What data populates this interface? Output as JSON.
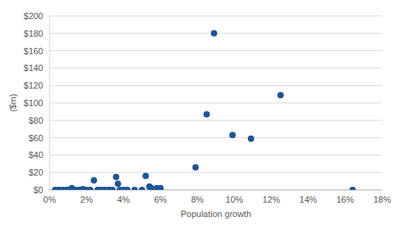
{
  "chart_data": {
    "type": "scatter",
    "x_label": "Population growth",
    "y_label": "($m)",
    "x": [
      0.3,
      0.5,
      0.7,
      0.9,
      1.0,
      1.2,
      1.3,
      1.4,
      1.6,
      1.8,
      2.0,
      2.2,
      2.4,
      2.6,
      2.8,
      3.0,
      3.2,
      3.4,
      3.6,
      3.7,
      3.8,
      4.0,
      4.2,
      4.6,
      5.0,
      5.2,
      5.4,
      5.5,
      5.8,
      6.0,
      6.0,
      7.9,
      8.5,
      8.9,
      9.9,
      10.9,
      12.5,
      16.4
    ],
    "values": [
      0,
      0,
      0,
      0,
      0,
      2,
      0,
      0,
      0,
      1,
      0,
      0,
      11,
      0,
      0,
      0,
      0,
      0,
      15,
      7,
      0,
      0,
      0,
      0,
      0,
      16,
      4,
      2,
      2,
      2,
      0,
      26,
      87,
      180,
      63,
      59,
      109,
      0
    ],
    "color": "#1f5596",
    "marker": "circle",
    "xlim": [
      0,
      18
    ],
    "xticks": [
      {
        "value": 0,
        "label": "0%"
      },
      {
        "value": 2,
        "label": "2%"
      },
      {
        "value": 4,
        "label": "4%"
      },
      {
        "value": 6,
        "label": "6%"
      },
      {
        "value": 8,
        "label": "8%"
      },
      {
        "value": 10,
        "label": "10%"
      },
      {
        "value": 12,
        "label": "12%"
      },
      {
        "value": 14,
        "label": "14%"
      },
      {
        "value": 16,
        "label": "16%"
      },
      {
        "value": 18,
        "label": "18%"
      }
    ],
    "ylim": [
      0,
      200
    ],
    "yticks": [
      {
        "value": 0,
        "label": "$0"
      },
      {
        "value": 20,
        "label": "$20"
      },
      {
        "value": 40,
        "label": "$40"
      },
      {
        "value": 60,
        "label": "$60"
      },
      {
        "value": 80,
        "label": "$80"
      },
      {
        "value": 100,
        "label": "$100"
      },
      {
        "value": 120,
        "label": "$120"
      },
      {
        "value": 140,
        "label": "$140"
      },
      {
        "value": 160,
        "label": "$160"
      },
      {
        "value": 180,
        "label": "$180"
      },
      {
        "value": 200,
        "label": "$200"
      }
    ],
    "grid": true
  }
}
